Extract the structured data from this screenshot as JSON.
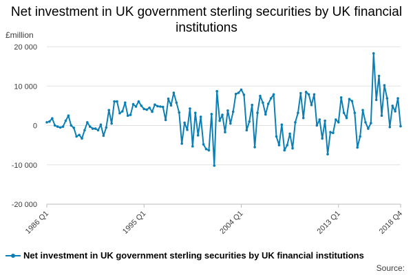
{
  "chart_data": {
    "type": "line",
    "title": "Net investment in UK government sterling securities by UK financial institutions",
    "ylabel": "£million",
    "xlabel": "",
    "ylim": [
      -20000,
      20000
    ],
    "yticks": [
      20000,
      10000,
      0,
      -10000,
      -20000
    ],
    "ytick_labels": [
      "20 000",
      "10 000",
      "0",
      "-10 000",
      "-20 000"
    ],
    "xtick_labels": [
      "1986 Q1",
      "1995 Q1",
      "2004 Q1",
      "2013 Q1",
      "2018 Q4"
    ],
    "grid": true,
    "legend_position": "bottom",
    "series": [
      {
        "name": "Net investment in UK government sterling securities by UK financial institutions",
        "color": "#0b7fb5",
        "x": [
          "1986 Q1",
          "1986 Q2",
          "1986 Q3",
          "1986 Q4",
          "1987 Q1",
          "1987 Q2",
          "1987 Q3",
          "1987 Q4",
          "1988 Q1",
          "1988 Q2",
          "1988 Q3",
          "1988 Q4",
          "1989 Q1",
          "1989 Q2",
          "1989 Q3",
          "1989 Q4",
          "1990 Q1",
          "1990 Q2",
          "1990 Q3",
          "1990 Q4",
          "1991 Q1",
          "1991 Q2",
          "1991 Q3",
          "1991 Q4",
          "1992 Q1",
          "1992 Q2",
          "1992 Q3",
          "1992 Q4",
          "1993 Q1",
          "1993 Q2",
          "1993 Q3",
          "1993 Q4",
          "1994 Q1",
          "1994 Q2",
          "1994 Q3",
          "1994 Q4",
          "1995 Q1",
          "1995 Q2",
          "1995 Q3",
          "1995 Q4",
          "1996 Q1",
          "1996 Q2",
          "1996 Q3",
          "1996 Q4",
          "1997 Q1",
          "1997 Q2",
          "1997 Q3",
          "1997 Q4",
          "1998 Q1",
          "1998 Q2",
          "1998 Q3",
          "1998 Q4",
          "1999 Q1",
          "1999 Q2",
          "1999 Q3",
          "1999 Q4",
          "2000 Q1",
          "2000 Q2",
          "2000 Q3",
          "2000 Q4",
          "2001 Q1",
          "2001 Q2",
          "2001 Q3",
          "2001 Q4",
          "2002 Q1",
          "2002 Q2",
          "2002 Q3",
          "2002 Q4",
          "2003 Q1",
          "2003 Q2",
          "2003 Q3",
          "2003 Q4",
          "2004 Q1",
          "2004 Q2",
          "2004 Q3",
          "2004 Q4",
          "2005 Q1",
          "2005 Q2",
          "2005 Q3",
          "2005 Q4",
          "2006 Q1",
          "2006 Q2",
          "2006 Q3",
          "2006 Q4",
          "2007 Q1",
          "2007 Q2",
          "2007 Q3",
          "2007 Q4",
          "2008 Q1",
          "2008 Q2",
          "2008 Q3",
          "2008 Q4",
          "2009 Q1",
          "2009 Q2",
          "2009 Q3",
          "2009 Q4",
          "2010 Q1",
          "2010 Q2",
          "2010 Q3",
          "2010 Q4",
          "2011 Q1",
          "2011 Q2",
          "2011 Q3",
          "2011 Q4",
          "2012 Q1",
          "2012 Q2",
          "2012 Q3",
          "2012 Q4",
          "2013 Q1",
          "2013 Q2",
          "2013 Q3",
          "2013 Q4",
          "2014 Q1",
          "2014 Q2",
          "2014 Q3",
          "2014 Q4",
          "2015 Q1",
          "2015 Q2",
          "2015 Q3",
          "2015 Q4",
          "2016 Q1",
          "2016 Q2",
          "2016 Q3",
          "2016 Q4",
          "2017 Q1",
          "2017 Q2",
          "2017 Q3",
          "2017 Q4",
          "2018 Q1",
          "2018 Q2",
          "2018 Q3",
          "2018 Q4"
        ],
        "values": [
          800,
          1000,
          1800,
          0,
          -300,
          -500,
          -300,
          1200,
          2500,
          0,
          -600,
          -2800,
          -2400,
          -3300,
          -1200,
          800,
          -300,
          -800,
          -800,
          -1200,
          200,
          -2600,
          -500,
          3900,
          500,
          6100,
          6100,
          3100,
          3600,
          5800,
          2500,
          2700,
          5400,
          4800,
          6100,
          5000,
          4200,
          4000,
          4500,
          3500,
          5300,
          4900,
          4800,
          4700,
          1400,
          6800,
          5100,
          8300,
          5800,
          3300,
          -4600,
          700,
          -1100,
          4300,
          -5300,
          3200,
          -2500,
          2200,
          -4800,
          -6000,
          -6300,
          2900,
          -10200,
          8700,
          1200,
          2700,
          -1700,
          3800,
          500,
          3500,
          8000,
          8300,
          9100,
          7800,
          -1200,
          1000,
          5200,
          -5500,
          3200,
          7500,
          5800,
          2800,
          5500,
          6900,
          7900,
          -2800,
          -5000,
          200,
          -6300,
          -5000,
          -2100,
          -5800,
          800,
          3200,
          8200,
          1900,
          8500,
          7900,
          5200,
          7900,
          0,
          1500,
          -3300,
          1200,
          -7300,
          -1700,
          -1900,
          1500,
          800,
          7100,
          3200,
          1900,
          6700,
          6200,
          3200,
          -5600,
          -2800,
          3900,
          800,
          -800,
          600,
          18300,
          6500,
          12600,
          2500,
          10200,
          6900,
          -400,
          5000,
          3600,
          6900,
          -200
        ]
      }
    ],
    "source_label": "Source:"
  }
}
